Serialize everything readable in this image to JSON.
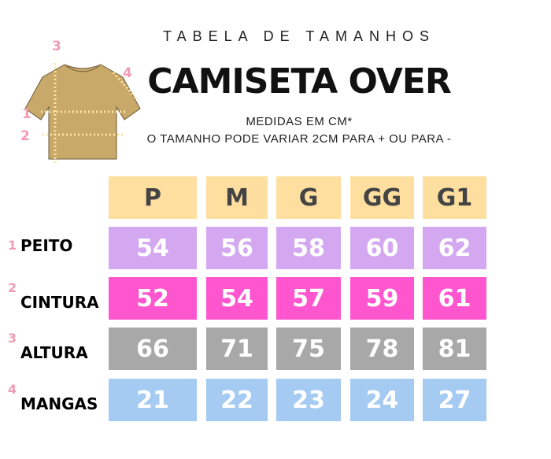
{
  "header": {
    "subtitle": "TABELA DE TAMANHOS",
    "title": "CAMISETA OVER",
    "note_line1": "MEDIDAS EM CM*",
    "note_line2": "O TAMANHO PODE VARIAR 2CM PARA + OU PARA -"
  },
  "illustration": {
    "icon": "tshirt-measurement-diagram",
    "shirt_color": "#C8A96A",
    "markers": [
      "1",
      "2",
      "3",
      "4"
    ]
  },
  "table": {
    "columns": [
      "P",
      "M",
      "G",
      "GG",
      "G1"
    ],
    "rows": [
      {
        "num": "1",
        "label": "PEITO",
        "color": "#D4A8F0",
        "values": [
          "54",
          "56",
          "58",
          "60",
          "62"
        ]
      },
      {
        "num": "2",
        "label": "CINTURA",
        "color": "#FF55CF",
        "values": [
          "52",
          "54",
          "57",
          "59",
          "61"
        ]
      },
      {
        "num": "3",
        "label": "ALTURA",
        "color": "#A8A8A8",
        "values": [
          "66",
          "71",
          "75",
          "78",
          "81"
        ]
      },
      {
        "num": "4",
        "label": "MANGAS",
        "color": "#A5CBF2",
        "values": [
          "21",
          "22",
          "23",
          "24",
          "27"
        ]
      }
    ],
    "header_color": "#FFDFA0"
  }
}
